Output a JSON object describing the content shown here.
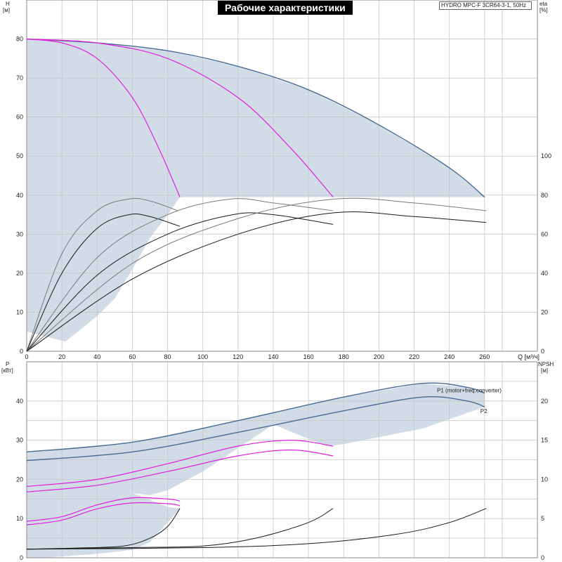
{
  "chart_data": {
    "type": "line",
    "title": "Рабочие характеристики",
    "subtitle": "HYDRO MPC-F 3CR64-3-1, 50Hz",
    "colors": {
      "envelope": "#d1dce7",
      "main": "#4a6b92",
      "magenta": "#e020e0",
      "black": "#1a1a1a",
      "grey": "#7a7a7a"
    },
    "top": {
      "xlabel": "Q [м³/ч]",
      "x_ticks": [
        "0",
        "20",
        "40",
        "60",
        "80",
        "100",
        "120",
        "140",
        "160",
        "180",
        "200",
        "220",
        "240",
        "260"
      ],
      "xlim": [
        0,
        290
      ],
      "left_axis": {
        "label_top": "H",
        "label_bottom": "[м]",
        "ylim": [
          0,
          90
        ],
        "ticks": [
          "0",
          "10",
          "20",
          "30",
          "40",
          "50",
          "60",
          "70",
          "80"
        ]
      },
      "right_axis": {
        "label_top": "eta",
        "label_bottom": "[%]",
        "ylim": [
          0,
          180
        ],
        "ticks": [
          "0",
          "20",
          "40",
          "60",
          "80",
          "100"
        ]
      },
      "series": [
        {
          "curve": "H",
          "color": "main",
          "points": [
            [
              0,
              80
            ],
            [
              40,
              79
            ],
            [
              80,
              77
            ],
            [
              120,
              73
            ],
            [
              160,
              67
            ],
            [
              200,
              58
            ],
            [
              240,
              47
            ],
            [
              260,
              39.5
            ]
          ]
        },
        {
          "curve": "H",
          "color": "magenta",
          "points": [
            [
              0,
              80
            ],
            [
              20,
              79
            ],
            [
              40,
              75
            ],
            [
              60,
              65
            ],
            [
              75,
              52
            ],
            [
              87,
              39.5
            ]
          ]
        },
        {
          "curve": "H",
          "color": "magenta",
          "points": [
            [
              0,
              80
            ],
            [
              40,
              79
            ],
            [
              80,
              75
            ],
            [
              120,
              65
            ],
            [
              150,
              52
            ],
            [
              174,
              39.5
            ]
          ]
        },
        {
          "curve": "eta",
          "color": "grey",
          "points": [
            [
              0,
              0
            ],
            [
              20,
              50
            ],
            [
              40,
              72
            ],
            [
              58,
              78
            ],
            [
              70,
              77
            ],
            [
              86,
              72
            ]
          ]
        },
        {
          "curve": "eta",
          "color": "black",
          "points": [
            [
              0,
              0
            ],
            [
              20,
              40
            ],
            [
              40,
              63
            ],
            [
              58,
              70
            ],
            [
              70,
              69
            ],
            [
              87,
              64
            ]
          ]
        },
        {
          "curve": "eta",
          "color": "grey",
          "points": [
            [
              0,
              0
            ],
            [
              40,
              48
            ],
            [
              80,
              70
            ],
            [
              116,
              78
            ],
            [
              140,
              76
            ],
            [
              174,
              72
            ]
          ]
        },
        {
          "curve": "eta",
          "color": "black",
          "points": [
            [
              0,
              0
            ],
            [
              40,
              39
            ],
            [
              80,
              60
            ],
            [
              117,
              70
            ],
            [
              140,
              70
            ],
            [
              174,
              65
            ]
          ]
        },
        {
          "curve": "eta",
          "color": "grey",
          "points": [
            [
              0,
              0
            ],
            [
              60,
              45
            ],
            [
              120,
              68
            ],
            [
              175,
              78
            ],
            [
              220,
              76
            ],
            [
              261,
              72
            ]
          ]
        },
        {
          "curve": "eta",
          "color": "black",
          "points": [
            [
              0,
              0
            ],
            [
              60,
              37
            ],
            [
              120,
              60
            ],
            [
              175,
              71
            ],
            [
              220,
              69
            ],
            [
              261,
              66
            ]
          ]
        }
      ],
      "envelope": [
        [
          0,
          80
        ],
        [
          40,
          79
        ],
        [
          80,
          77
        ],
        [
          120,
          73
        ],
        [
          160,
          67
        ],
        [
          200,
          58
        ],
        [
          240,
          47
        ],
        [
          260,
          39.5
        ],
        [
          87,
          39.5
        ],
        [
          80,
          35
        ],
        [
          70,
          29
        ],
        [
          60,
          21
        ],
        [
          50,
          13.5
        ],
        [
          40,
          9
        ],
        [
          22,
          2.5
        ],
        [
          0,
          5
        ]
      ]
    },
    "bottom": {
      "left_axis": {
        "label_top": "P",
        "label_bottom": "[кВт]",
        "ylim": [
          0,
          50
        ],
        "ticks": [
          "0",
          "10",
          "20",
          "30",
          "40"
        ]
      },
      "right_axis": {
        "label_top": "NPSH",
        "label_bottom": "[м]",
        "ylim": [
          0,
          25
        ],
        "ticks": [
          "0",
          "5",
          "10",
          "15",
          "20"
        ]
      },
      "legend": [
        "P1 (motor+freq.converter)",
        "P2"
      ],
      "series": [
        {
          "curve": "P1",
          "color": "main",
          "points": [
            [
              0,
              27
            ],
            [
              60,
              29.5
            ],
            [
              120,
              35
            ],
            [
              180,
              41
            ],
            [
              225,
              44.5
            ],
            [
              250,
              43.5
            ],
            [
              260,
              42
            ]
          ]
        },
        {
          "curve": "P2",
          "color": "main",
          "points": [
            [
              0,
              24.8
            ],
            [
              60,
              27
            ],
            [
              120,
              32
            ],
            [
              180,
              37.5
            ],
            [
              225,
              41
            ],
            [
              250,
              40
            ],
            [
              260,
              38.5
            ]
          ]
        },
        {
          "curve": "P1",
          "color": "magenta",
          "points": [
            [
              0,
              18.2
            ],
            [
              40,
              20
            ],
            [
              80,
              24
            ],
            [
              120,
              28.5
            ],
            [
              150,
              30
            ],
            [
              174,
              28.5
            ]
          ]
        },
        {
          "curve": "P2",
          "color": "magenta",
          "points": [
            [
              0,
              16.8
            ],
            [
              40,
              18.5
            ],
            [
              80,
              22
            ],
            [
              120,
              26
            ],
            [
              150,
              27.5
            ],
            [
              174,
              26
            ]
          ]
        },
        {
          "curve": "P1",
          "color": "magenta",
          "points": [
            [
              0,
              9.3
            ],
            [
              20,
              10.5
            ],
            [
              40,
              13.5
            ],
            [
              60,
              15.3
            ],
            [
              80,
              15
            ],
            [
              87,
              14.5
            ]
          ]
        },
        {
          "curve": "P2",
          "color": "magenta",
          "points": [
            [
              0,
              8.4
            ],
            [
              20,
              9.6
            ],
            [
              40,
              12.5
            ],
            [
              60,
              14
            ],
            [
              80,
              13.8
            ],
            [
              87,
              13.3
            ]
          ]
        },
        {
          "curve": "NPSH",
          "color": "black",
          "points": [
            [
              0,
              1.1
            ],
            [
              30,
              1.25
            ],
            [
              55,
              1.5
            ],
            [
              70,
              2.5
            ],
            [
              80,
              4
            ],
            [
              87,
              6.3
            ]
          ]
        },
        {
          "curve": "NPSH",
          "color": "black",
          "points": [
            [
              0,
              1.1
            ],
            [
              60,
              1.3
            ],
            [
              100,
              1.5
            ],
            [
              130,
              2.5
            ],
            [
              160,
              4.5
            ],
            [
              174,
              6.3
            ]
          ]
        },
        {
          "curve": "NPSH",
          "color": "black",
          "points": [
            [
              0,
              1.1
            ],
            [
              100,
              1.3
            ],
            [
              160,
              1.8
            ],
            [
              210,
              3
            ],
            [
              240,
              4.5
            ],
            [
              261,
              6.3
            ]
          ]
        }
      ],
      "envelope": [
        [
          0,
          27
        ],
        [
          60,
          29.5
        ],
        [
          120,
          35
        ],
        [
          180,
          41
        ],
        [
          225,
          44.5
        ],
        [
          250,
          43.5
        ],
        [
          260,
          42
        ],
        [
          260,
          38.5
        ],
        [
          225,
          33
        ],
        [
          180,
          29
        ],
        [
          170,
          28.5
        ],
        [
          140,
          34
        ],
        [
          100,
          22
        ],
        [
          80,
          17.2
        ],
        [
          70,
          16
        ],
        [
          60,
          16.5
        ],
        [
          80,
          13
        ],
        [
          87,
          12.5
        ],
        [
          80,
          9
        ],
        [
          70,
          4
        ],
        [
          60,
          2
        ],
        [
          40,
          1
        ],
        [
          10,
          0
        ],
        [
          0,
          0
        ]
      ]
    }
  }
}
